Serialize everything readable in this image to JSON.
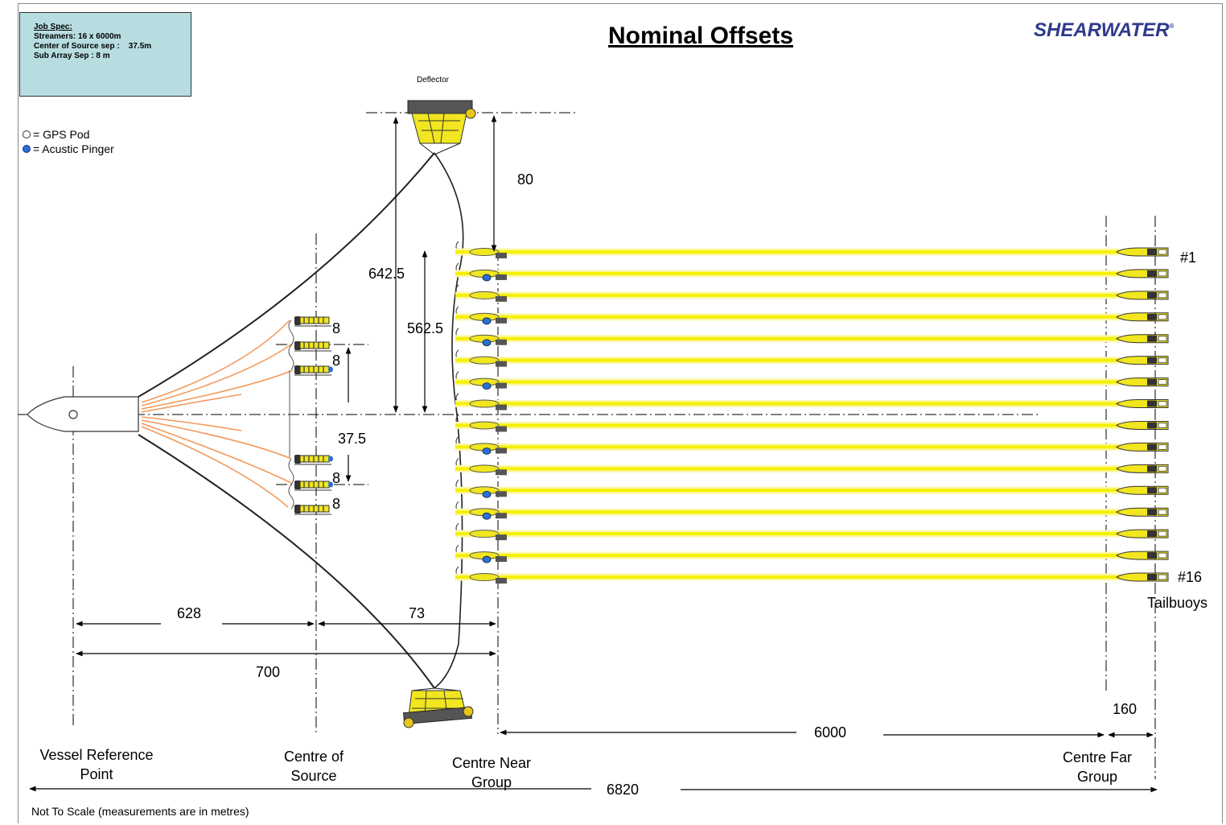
{
  "job_spec": {
    "heading": "Job Spec:",
    "lines": [
      "Streamers: 16 x 6000m",
      "Center of Source sep :    37.5m",
      "Sub Array Sep : 8 m"
    ]
  },
  "title": "Nominal Offsets",
  "logo": {
    "text": "SHEARWATER",
    "mark": "®"
  },
  "legend": {
    "gps": "= GPS Pod",
    "pinger": "= Acustic Pinger"
  },
  "labels": {
    "deflector": "Deflector",
    "offset_80": "80",
    "offset_642": "642.5",
    "offset_562": "562.5",
    "sub_8_1": "8",
    "sub_8_2": "8",
    "sub_8_3": "8",
    "sub_8_4": "8",
    "source_sep": "37.5",
    "dist_628": "628",
    "dist_73": "73",
    "dist_700": "700",
    "dist_6000": "6000",
    "dist_160": "160",
    "dist_6820": "6820",
    "streamer_first": "#1",
    "streamer_last": "#16",
    "tailbuoys": "Tailbuoys",
    "vessel_ref_1": "Vessel Reference",
    "vessel_ref_2": "Point",
    "centre_source_1": "Centre of",
    "centre_source_2": "Source",
    "centre_near_1": "Centre Near",
    "centre_near_2": "Group",
    "centre_far_1": "Centre Far",
    "centre_far_2": "Group"
  },
  "note": "Not To Scale (measurements are in metres)",
  "colors": {
    "streamer": "#f5f000",
    "streamer_glow": "#fbf7a8",
    "gun_cable": "#f29a5c",
    "pinger": "#2b6ed8",
    "logo": "#2e3a8c",
    "jobspec_bg": "#b7dde1"
  },
  "streamers": {
    "count": 16,
    "pinger_near": [
      false,
      true,
      false,
      true,
      true,
      false,
      true,
      false,
      false,
      true,
      false,
      true,
      true,
      false,
      true,
      false
    ]
  }
}
